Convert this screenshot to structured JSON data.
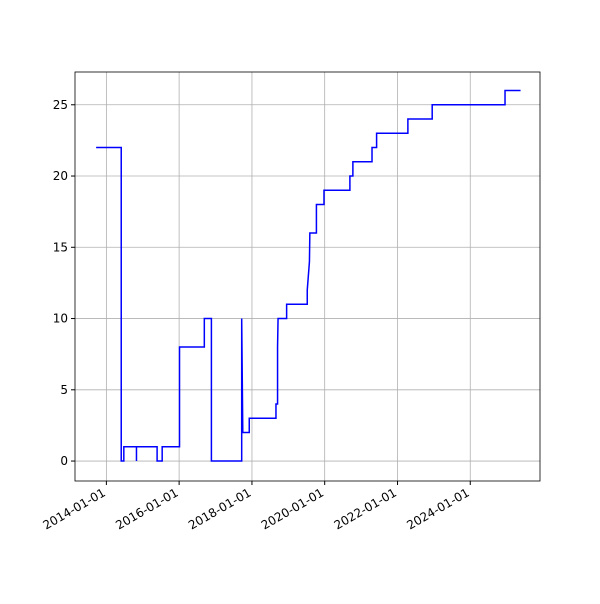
{
  "chart_data": {
    "type": "line",
    "x": [
      "2013-09-20",
      "2014-05-30",
      "2014-05-30",
      "2014-06-25",
      "2014-06-25",
      "2014-10-30",
      "2014-10-30",
      "2014-10-30",
      "2015-05-25",
      "2015-05-25",
      "2015-07-15",
      "2015-07-15",
      "2016-01-05",
      "2016-01-05",
      "2016-09-10",
      "2016-09-10",
      "2016-11-20",
      "2016-11-20",
      "2017-09-20",
      "2017-09-20",
      "2017-10-01",
      "2017-12-05",
      "2017-12-05",
      "2018-08-30",
      "2018-08-30",
      "2018-09-15",
      "2018-09-15",
      "2018-09-20",
      "2018-12-15",
      "2018-12-15",
      "2019-07-10",
      "2019-07-10",
      "2019-08-01",
      "2019-08-05",
      "2019-10-10",
      "2019-10-10",
      "2019-12-25",
      "2019-12-25",
      "2020-09-10",
      "2020-09-10",
      "2020-10-10",
      "2020-10-10",
      "2021-04-20",
      "2021-04-20",
      "2021-06-05",
      "2021-06-05",
      "2022-04-15",
      "2022-04-15",
      "2022-12-15",
      "2022-12-15",
      "2024-12-15",
      "2024-12-15",
      "2025-05-20"
    ],
    "series": [
      {
        "color": "#0000ff",
        "values": [
          22,
          22,
          0,
          0,
          1,
          1,
          0,
          1,
          1,
          0,
          0,
          1,
          1,
          8,
          8,
          10,
          10,
          0,
          0,
          10,
          2,
          2,
          3,
          3,
          4,
          4,
          8,
          10,
          10,
          11,
          11,
          12,
          14,
          16,
          16,
          18,
          18,
          19,
          19,
          20,
          20,
          21,
          21,
          22,
          22,
          23,
          23,
          24,
          24,
          25,
          25,
          26,
          26
        ]
      }
    ],
    "xlim": [
      "2013-02-20",
      "2025-12-01"
    ],
    "xticks": [
      "2014-01-01",
      "2016-01-01",
      "2018-01-01",
      "2020-01-01",
      "2022-01-01",
      "2024-01-01"
    ],
    "ylim": [
      -1.4,
      27.3
    ],
    "yticks": [
      0,
      5,
      10,
      15,
      20,
      25
    ],
    "grid": true
  }
}
